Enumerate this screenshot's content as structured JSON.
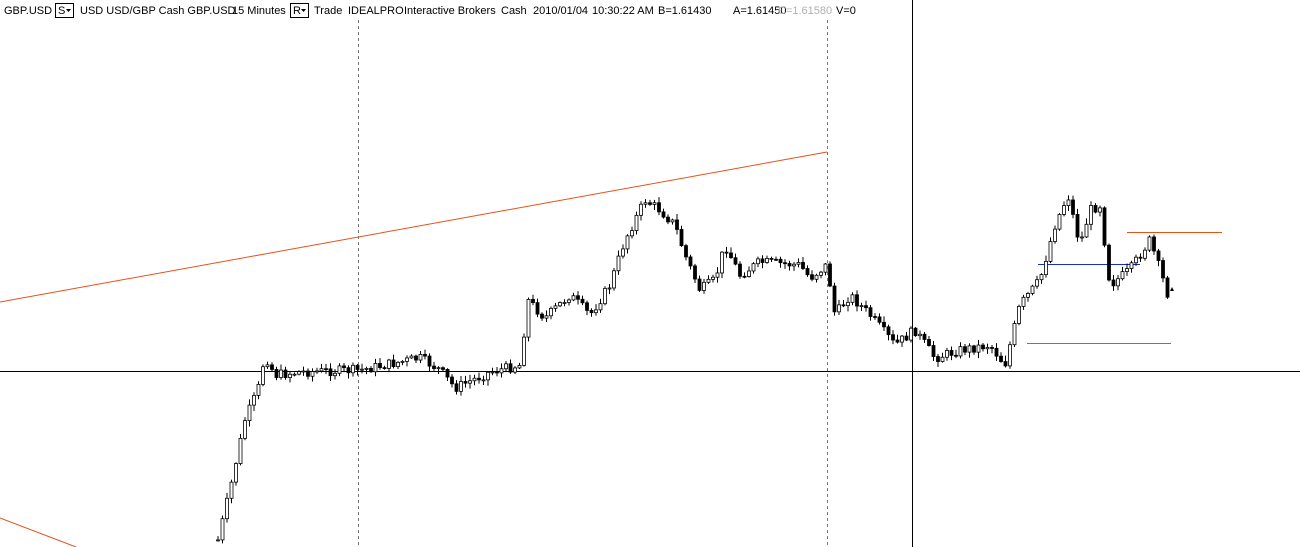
{
  "header": {
    "symbol": "GBP.USD",
    "style_button": "S",
    "description": "USD USD/GBP Cash GBP.USD",
    "interval": "15 Minutes",
    "range_button": "R",
    "mode": "Trade",
    "exchange": "IDEALPRO",
    "broker": "Interactive Brokers",
    "sec_type": "Cash",
    "date": "2010/01/04",
    "time": "10:30:22 AM",
    "bid": "B=1.61430",
    "ask": "A=1.61450",
    "close": "C=1.61580",
    "volume": "V=0"
  }
}
